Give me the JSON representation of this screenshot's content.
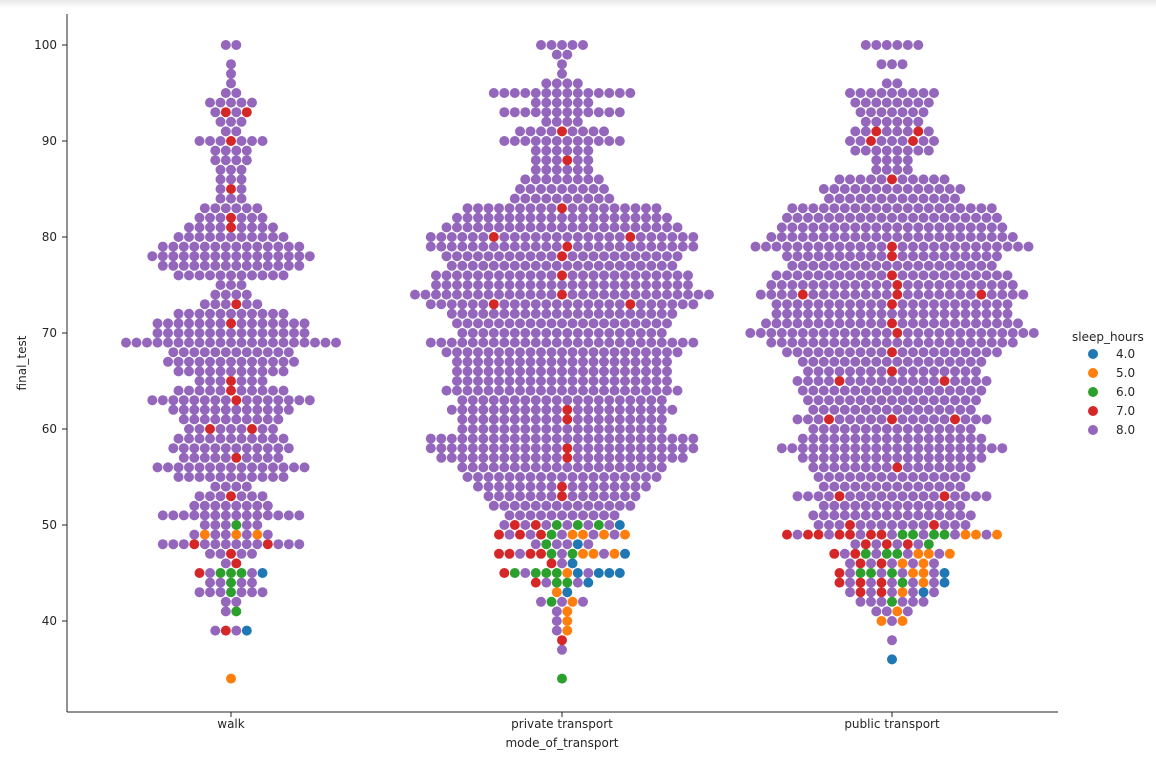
{
  "chart_data": {
    "type": "scatter",
    "subtype": "swarm",
    "xlabel": "mode_of_transport",
    "ylabel": "final_test",
    "categories": [
      "walk",
      "private transport",
      "public transport"
    ],
    "ylim": [
      31,
      104
    ],
    "yticks": [
      40,
      50,
      60,
      70,
      80,
      90,
      100
    ],
    "grid": false,
    "legend": {
      "title": "sleep_hours",
      "placement": "center-right outside",
      "entries": [
        {
          "label": "4.0",
          "color": "#1f77b4"
        },
        {
          "label": "5.0",
          "color": "#ff7f0e"
        },
        {
          "label": "6.0",
          "color": "#2ca02c"
        },
        {
          "label": "7.0",
          "color": "#d62728"
        },
        {
          "label": "8.0",
          "color": "#9467bd"
        }
      ]
    },
    "series": {
      "walk": {
        "8.0": [
          [
            100,
            2
          ],
          [
            98,
            1
          ],
          [
            97,
            1
          ],
          [
            96,
            1
          ],
          [
            95,
            2
          ],
          [
            94,
            5
          ],
          [
            93,
            2
          ],
          [
            92,
            3
          ],
          [
            91,
            2
          ],
          [
            90,
            6
          ],
          [
            89,
            4
          ],
          [
            88,
            4
          ],
          [
            87,
            3
          ],
          [
            86,
            3
          ],
          [
            85,
            2
          ],
          [
            84,
            3
          ],
          [
            83,
            6
          ],
          [
            82,
            6
          ],
          [
            81,
            8
          ],
          [
            80,
            11
          ],
          [
            79,
            14
          ],
          [
            78,
            16
          ],
          [
            77,
            14
          ],
          [
            76,
            11
          ],
          [
            75,
            3
          ],
          [
            74,
            4
          ],
          [
            73,
            5
          ],
          [
            72,
            11
          ],
          [
            71,
            14
          ],
          [
            70,
            15
          ],
          [
            69,
            21
          ],
          [
            68,
            12
          ],
          [
            67,
            13
          ],
          [
            66,
            11
          ],
          [
            65,
            6
          ],
          [
            64,
            10
          ],
          [
            63,
            15
          ],
          [
            62,
            12
          ],
          [
            61,
            10
          ],
          [
            60,
            7
          ],
          [
            59,
            11
          ],
          [
            58,
            12
          ],
          [
            57,
            9
          ],
          [
            56,
            15
          ],
          [
            55,
            11
          ],
          [
            54,
            4
          ],
          [
            53,
            6
          ],
          [
            52,
            8
          ],
          [
            51,
            14
          ],
          [
            50,
            5
          ],
          [
            49,
            5
          ],
          [
            48,
            12
          ],
          [
            47,
            4
          ],
          [
            46,
            1
          ],
          [
            45,
            2
          ],
          [
            44,
            4
          ],
          [
            43,
            6
          ],
          [
            42,
            2
          ],
          [
            41,
            1
          ],
          [
            39,
            2
          ]
        ],
        "7.0": [
          [
            93,
            2
          ],
          [
            90,
            1
          ],
          [
            85,
            1
          ],
          [
            82,
            1
          ],
          [
            81,
            1
          ],
          [
            73,
            1
          ],
          [
            71,
            1
          ],
          [
            65,
            1
          ],
          [
            64,
            1
          ],
          [
            63,
            1
          ],
          [
            60,
            2
          ],
          [
            57,
            1
          ],
          [
            53,
            1
          ],
          [
            48,
            2
          ],
          [
            47,
            1
          ],
          [
            46,
            1
          ],
          [
            45,
            1
          ],
          [
            39,
            1
          ]
        ],
        "6.0": [
          [
            50,
            1
          ],
          [
            45,
            3
          ],
          [
            44,
            1
          ],
          [
            43,
            1
          ],
          [
            41,
            1
          ]
        ],
        "5.0": [
          [
            49,
            3
          ],
          [
            34,
            1
          ]
        ],
        "4.0": [
          [
            45,
            1
          ],
          [
            39,
            1
          ]
        ]
      },
      "private transport": {
        "8.0": [
          [
            100,
            5
          ],
          [
            99,
            2
          ],
          [
            98,
            1
          ],
          [
            97,
            1
          ],
          [
            96,
            4
          ],
          [
            95,
            14
          ],
          [
            94,
            6
          ],
          [
            93,
            12
          ],
          [
            92,
            4
          ],
          [
            91,
            8
          ],
          [
            90,
            12
          ],
          [
            89,
            6
          ],
          [
            88,
            5
          ],
          [
            87,
            6
          ],
          [
            86,
            8
          ],
          [
            85,
            9
          ],
          [
            84,
            10
          ],
          [
            83,
            18
          ],
          [
            82,
            21
          ],
          [
            81,
            23
          ],
          [
            80,
            24
          ],
          [
            79,
            25
          ],
          [
            78,
            22
          ],
          [
            77,
            22
          ],
          [
            76,
            24
          ],
          [
            75,
            25
          ],
          [
            74,
            28
          ],
          [
            73,
            24
          ],
          [
            72,
            22
          ],
          [
            71,
            21
          ],
          [
            70,
            20
          ],
          [
            69,
            26
          ],
          [
            68,
            23
          ],
          [
            67,
            21
          ],
          [
            66,
            21
          ],
          [
            65,
            21
          ],
          [
            64,
            23
          ],
          [
            63,
            20
          ],
          [
            62,
            21
          ],
          [
            61,
            19
          ],
          [
            60,
            20
          ],
          [
            59,
            26
          ],
          [
            58,
            25
          ],
          [
            57,
            23
          ],
          [
            56,
            20
          ],
          [
            55,
            19
          ],
          [
            54,
            16
          ],
          [
            53,
            14
          ],
          [
            52,
            14
          ],
          [
            51,
            11
          ],
          [
            50,
            6
          ],
          [
            49,
            5
          ],
          [
            48,
            4
          ],
          [
            47,
            3
          ],
          [
            46,
            1
          ],
          [
            45,
            2
          ],
          [
            44,
            2
          ],
          [
            42,
            3
          ],
          [
            41,
            1
          ],
          [
            40,
            1
          ],
          [
            39,
            1
          ],
          [
            37,
            1
          ]
        ],
        "7.0": [
          [
            91,
            1
          ],
          [
            88,
            1
          ],
          [
            83,
            1
          ],
          [
            80,
            2
          ],
          [
            79,
            1
          ],
          [
            78,
            1
          ],
          [
            76,
            1
          ],
          [
            74,
            1
          ],
          [
            73,
            2
          ],
          [
            62,
            1
          ],
          [
            61,
            1
          ],
          [
            58,
            1
          ],
          [
            57,
            1
          ],
          [
            54,
            1
          ],
          [
            53,
            1
          ],
          [
            50,
            2
          ],
          [
            49,
            3
          ],
          [
            47,
            4
          ],
          [
            46,
            1
          ],
          [
            45,
            1
          ],
          [
            44,
            1
          ],
          [
            38,
            1
          ]
        ],
        "6.0": [
          [
            50,
            3
          ],
          [
            49,
            1
          ],
          [
            48,
            1
          ],
          [
            47,
            2
          ],
          [
            45,
            4
          ],
          [
            44,
            2
          ],
          [
            42,
            1
          ],
          [
            34,
            1
          ]
        ],
        "5.0": [
          [
            49,
            4
          ],
          [
            47,
            3
          ],
          [
            45,
            1
          ],
          [
            43,
            1
          ],
          [
            42,
            1
          ],
          [
            41,
            1
          ],
          [
            40,
            1
          ],
          [
            39,
            1
          ]
        ],
        "4.0": [
          [
            50,
            1
          ],
          [
            48,
            1
          ],
          [
            47,
            1
          ],
          [
            46,
            1
          ],
          [
            45,
            4
          ],
          [
            44,
            1
          ],
          [
            43,
            1
          ]
        ]
      },
      "public transport": {
        "8.0": [
          [
            100,
            6
          ],
          [
            98,
            3
          ],
          [
            96,
            2
          ],
          [
            95,
            9
          ],
          [
            94,
            8
          ],
          [
            93,
            7
          ],
          [
            92,
            6
          ],
          [
            91,
            6
          ],
          [
            90,
            7
          ],
          [
            89,
            8
          ],
          [
            88,
            4
          ],
          [
            87,
            4
          ],
          [
            86,
            10
          ],
          [
            85,
            14
          ],
          [
            84,
            13
          ],
          [
            83,
            20
          ],
          [
            82,
            21
          ],
          [
            81,
            22
          ],
          [
            80,
            24
          ],
          [
            79,
            26
          ],
          [
            78,
            20
          ],
          [
            77,
            20
          ],
          [
            76,
            22
          ],
          [
            75,
            23
          ],
          [
            74,
            23
          ],
          [
            73,
            22
          ],
          [
            72,
            23
          ],
          [
            71,
            24
          ],
          [
            70,
            27
          ],
          [
            69,
            24
          ],
          [
            68,
            20
          ],
          [
            67,
            18
          ],
          [
            66,
            16
          ],
          [
            65,
            17
          ],
          [
            64,
            18
          ],
          [
            63,
            17
          ],
          [
            62,
            16
          ],
          [
            61,
            16
          ],
          [
            60,
            16
          ],
          [
            59,
            18
          ],
          [
            58,
            22
          ],
          [
            57,
            18
          ],
          [
            56,
            15
          ],
          [
            55,
            15
          ],
          [
            54,
            14
          ],
          [
            53,
            17
          ],
          [
            52,
            14
          ],
          [
            51,
            16
          ],
          [
            50,
            13
          ],
          [
            49,
            7
          ],
          [
            48,
            4
          ],
          [
            47,
            4
          ],
          [
            46,
            5
          ],
          [
            45,
            4
          ],
          [
            44,
            5
          ],
          [
            43,
            5
          ],
          [
            42,
            6
          ],
          [
            41,
            3
          ],
          [
            40,
            1
          ],
          [
            38,
            1
          ]
        ],
        "7.0": [
          [
            91,
            2
          ],
          [
            90,
            2
          ],
          [
            86,
            1
          ],
          [
            79,
            1
          ],
          [
            78,
            1
          ],
          [
            76,
            1
          ],
          [
            75,
            1
          ],
          [
            74,
            3
          ],
          [
            73,
            1
          ],
          [
            71,
            1
          ],
          [
            70,
            1
          ],
          [
            68,
            1
          ],
          [
            66,
            1
          ],
          [
            65,
            2
          ],
          [
            61,
            3
          ],
          [
            56,
            1
          ],
          [
            53,
            2
          ],
          [
            50,
            2
          ],
          [
            49,
            7
          ],
          [
            48,
            3
          ],
          [
            47,
            2
          ],
          [
            46,
            2
          ],
          [
            45,
            1
          ],
          [
            44,
            3
          ],
          [
            43,
            2
          ]
        ],
        "6.0": [
          [
            49,
            4
          ],
          [
            48,
            1
          ],
          [
            47,
            3
          ],
          [
            45,
            3
          ],
          [
            44,
            1
          ],
          [
            42,
            1
          ]
        ],
        "5.0": [
          [
            49,
            3
          ],
          [
            47,
            3
          ],
          [
            46,
            2
          ],
          [
            45,
            2
          ],
          [
            44,
            1
          ],
          [
            43,
            1
          ],
          [
            41,
            1
          ],
          [
            40,
            2
          ]
        ],
        "4.0": [
          [
            45,
            1
          ],
          [
            44,
            1
          ],
          [
            43,
            1
          ],
          [
            36,
            1
          ]
        ]
      }
    }
  }
}
